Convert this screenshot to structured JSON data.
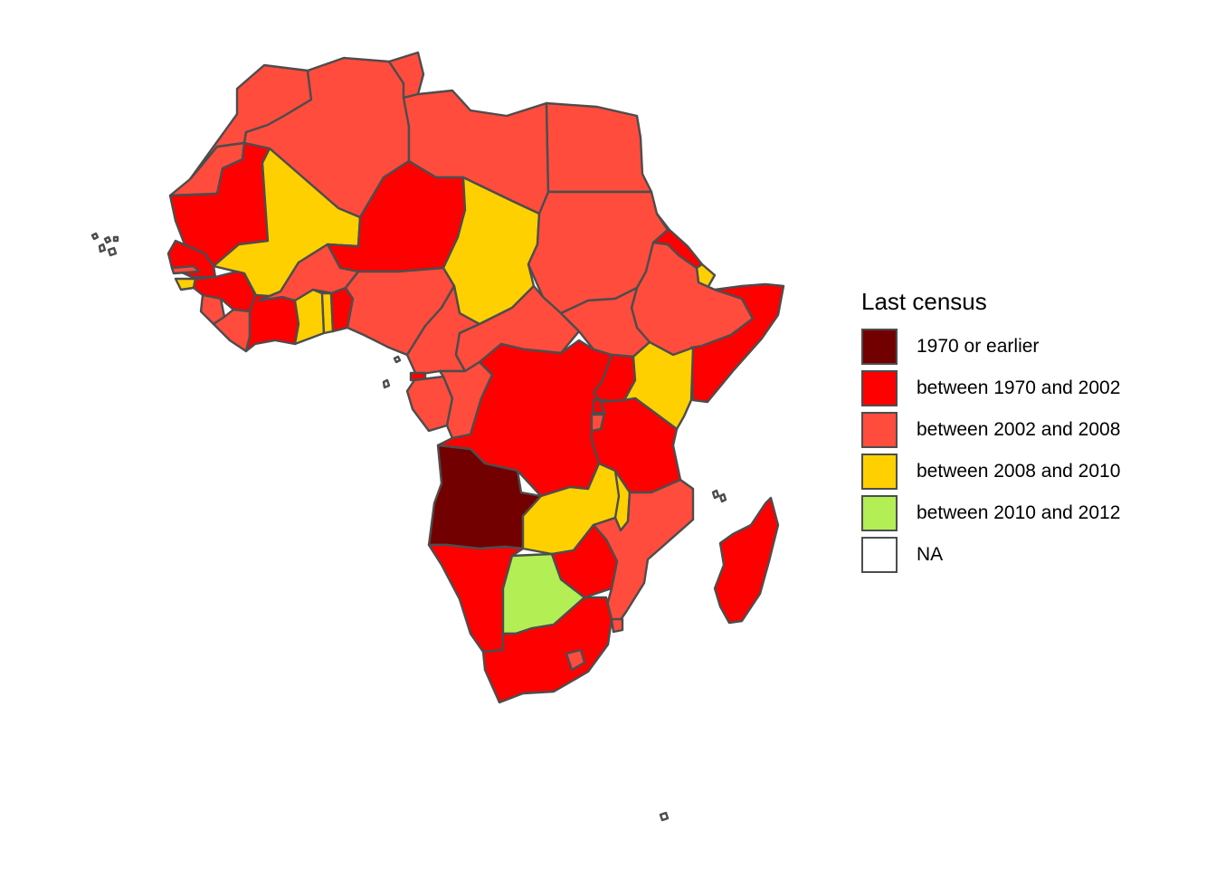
{
  "legend": {
    "title": "Last census",
    "items": [
      {
        "label": "1970 or earlier",
        "color": "#730000"
      },
      {
        "label": "between 1970 and 2002",
        "color": "#ff0000"
      },
      {
        "label": "between 2002 and 2008",
        "color": "#ff4c3d"
      },
      {
        "label": "between 2008 and 2010",
        "color": "#ffd000"
      },
      {
        "label": "between 2010 and 2012",
        "color": "#b3ee55"
      },
      {
        "label": "NA",
        "color": "#ffffff"
      }
    ]
  },
  "regions": [
    {
      "name": "morocco",
      "category": "between 2002 and 2008"
    },
    {
      "name": "western-sahara",
      "category": "between 2002 and 2008"
    },
    {
      "name": "algeria",
      "category": "between 2002 and 2008"
    },
    {
      "name": "tunisia",
      "category": "between 2002 and 2008"
    },
    {
      "name": "libya",
      "category": "between 2002 and 2008"
    },
    {
      "name": "egypt",
      "category": "between 2002 and 2008"
    },
    {
      "name": "mauritania",
      "category": "between 1970 and 2002"
    },
    {
      "name": "mali",
      "category": "between 2008 and 2010"
    },
    {
      "name": "niger",
      "category": "between 1970 and 2002"
    },
    {
      "name": "chad",
      "category": "between 2008 and 2010"
    },
    {
      "name": "sudan",
      "category": "between 2002 and 2008"
    },
    {
      "name": "eritrea",
      "category": "between 1970 and 2002"
    },
    {
      "name": "djibouti",
      "category": "between 2008 and 2010"
    },
    {
      "name": "ethiopia",
      "category": "between 2002 and 2008"
    },
    {
      "name": "somalia",
      "category": "between 1970 and 2002"
    },
    {
      "name": "senegal",
      "category": "between 1970 and 2002"
    },
    {
      "name": "gambia",
      "category": "between 2002 and 2008"
    },
    {
      "name": "guinea-bissau",
      "category": "between 2008 and 2010"
    },
    {
      "name": "guinea",
      "category": "between 1970 and 2002"
    },
    {
      "name": "sierra-leone",
      "category": "between 2002 and 2008"
    },
    {
      "name": "liberia",
      "category": "between 2002 and 2008"
    },
    {
      "name": "cote-divoire",
      "category": "between 1970 and 2002"
    },
    {
      "name": "burkina-faso",
      "category": "between 2002 and 2008"
    },
    {
      "name": "ghana",
      "category": "between 2008 and 2010"
    },
    {
      "name": "togo",
      "category": "between 2008 and 2010"
    },
    {
      "name": "benin",
      "category": "between 1970 and 2002"
    },
    {
      "name": "nigeria",
      "category": "between 2002 and 2008"
    },
    {
      "name": "cameroon",
      "category": "between 2002 and 2008"
    },
    {
      "name": "central-african-republic",
      "category": "between 2002 and 2008"
    },
    {
      "name": "south-sudan",
      "category": "between 2002 and 2008"
    },
    {
      "name": "equatorial-guinea",
      "category": "between 1970 and 2002"
    },
    {
      "name": "gabon",
      "category": "between 2002 and 2008"
    },
    {
      "name": "republic-of-congo",
      "category": "between 2002 and 2008"
    },
    {
      "name": "dr-congo",
      "category": "between 1970 and 2002"
    },
    {
      "name": "uganda",
      "category": "between 1970 and 2002"
    },
    {
      "name": "kenya",
      "category": "between 2008 and 2010"
    },
    {
      "name": "rwanda",
      "category": "between 1970 and 2002"
    },
    {
      "name": "burundi",
      "category": "between 2002 and 2008"
    },
    {
      "name": "tanzania",
      "category": "between 1970 and 2002"
    },
    {
      "name": "angola",
      "category": "1970 or earlier"
    },
    {
      "name": "zambia",
      "category": "between 2008 and 2010"
    },
    {
      "name": "malawi",
      "category": "between 2008 and 2010"
    },
    {
      "name": "mozambique",
      "category": "between 2002 and 2008"
    },
    {
      "name": "namibia",
      "category": "between 1970 and 2002"
    },
    {
      "name": "botswana",
      "category": "between 2010 and 2012"
    },
    {
      "name": "zimbabwe",
      "category": "between 1970 and 2002"
    },
    {
      "name": "south-africa",
      "category": "between 1970 and 2002"
    },
    {
      "name": "lesotho",
      "category": "between 2002 and 2008"
    },
    {
      "name": "swaziland",
      "category": "between 2002 and 2008"
    },
    {
      "name": "madagascar",
      "category": "between 1970 and 2002"
    },
    {
      "name": "cape-verde",
      "category": "NA"
    },
    {
      "name": "sao-tome",
      "category": "NA"
    },
    {
      "name": "comoros",
      "category": "NA"
    },
    {
      "name": "mauritius",
      "category": "NA"
    }
  ]
}
